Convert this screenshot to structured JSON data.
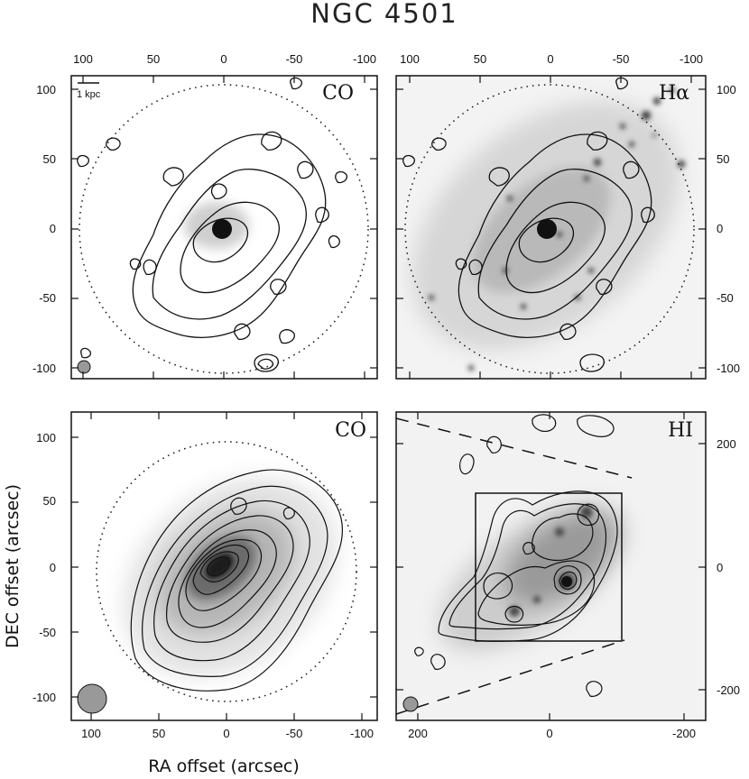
{
  "figure": {
    "title": "NGC 4501",
    "xlabel": "RA offset (arcsec)",
    "ylabel": "DEC offset (arcsec)",
    "scalebar_label": "1 kpc"
  },
  "panels": [
    {
      "id": "top-left",
      "label": "CO",
      "x_ticks": [
        "100",
        "50",
        "0",
        "-50",
        "-100"
      ],
      "y_ticks": [
        "100",
        "50",
        "0",
        "-50",
        "-100"
      ]
    },
    {
      "id": "top-right",
      "label": "Hα",
      "x_ticks": [
        "100",
        "50",
        "0",
        "-50",
        "-100"
      ],
      "y_ticks": [
        "100",
        "50",
        "0",
        "-50",
        "-100"
      ]
    },
    {
      "id": "bottom-left",
      "label": "CO",
      "x_ticks": [
        "100",
        "50",
        "0",
        "-50",
        "-100"
      ],
      "y_ticks": [
        "100",
        "50",
        "0",
        "-50",
        "-100"
      ]
    },
    {
      "id": "bottom-right",
      "label": "HI",
      "x_ticks": [
        "200",
        "0",
        "-200"
      ],
      "y_ticks": [
        "200",
        "0",
        "-200"
      ]
    }
  ]
}
